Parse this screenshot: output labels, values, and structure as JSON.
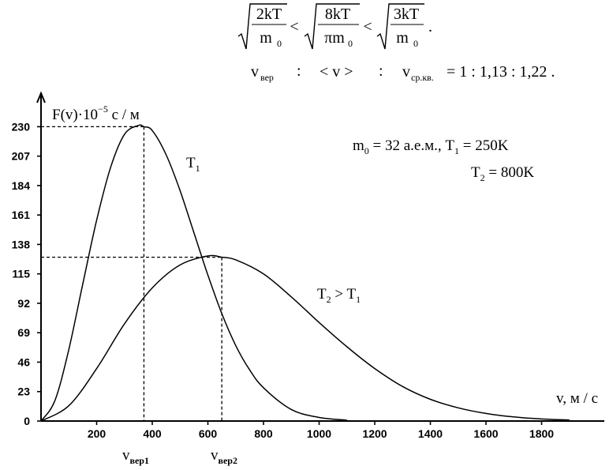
{
  "formula": {
    "line1": {
      "a_num": "2kT",
      "a_den": "m",
      "a_den_sub": "0",
      "b_num": "8kT",
      "b_den": "πm",
      "b_den_sub": "0",
      "c_num": "3kT",
      "c_den": "m",
      "c_den_sub": "0",
      "lt": "<",
      "end": "."
    },
    "line2": {
      "v_ver": "v",
      "v_ver_sub": "вер",
      "colon": ":",
      "v_avg": "< v >",
      "v_sq": "v",
      "v_sq_sub": "ср.кв.",
      "ratio": "= 1 : 1,13 : 1,22 ."
    }
  },
  "annotations": {
    "ylabel_main": "F(v)·10",
    "ylabel_exp": "−5",
    "ylabel_unit": " с / м",
    "xlabel": "v, м / с",
    "params_line1": "m",
    "params_m_sub": "0",
    "params_m_val": " = 32 а.е.м.,  T",
    "params_t1_sub": "1",
    "params_t1_val": " = 250K",
    "params_line2": "T",
    "params_t2_sub": "2",
    "params_t2_val": " = 800K",
    "curve1_label": "T",
    "curve1_sub": "1",
    "curve2_label": "T",
    "curve2_sub": "2",
    "curve2_rest": " > T",
    "curve2_rest_sub": "1",
    "vver1": "v",
    "vver1_sub": "вер1",
    "vver2": "v",
    "vver2_sub": "вер2"
  },
  "chart_data": {
    "type": "line",
    "xlabel": "v, м / с",
    "ylabel": "F(v)·10−5 с / м",
    "xlim": [
      0,
      2000
    ],
    "ylim": [
      0,
      250
    ],
    "xticks": [
      200,
      400,
      600,
      800,
      1000,
      1200,
      1400,
      1600,
      1800
    ],
    "yticks": [
      0,
      23,
      46,
      69,
      92,
      115,
      138,
      161,
      184,
      207,
      230
    ],
    "grid": false,
    "legend": "none",
    "series": [
      {
        "name": "T1",
        "peak_x": 370,
        "peak_y": 230,
        "x": [
          0,
          50,
          100,
          150,
          200,
          250,
          300,
          350,
          370,
          400,
          450,
          500,
          550,
          600,
          650,
          700,
          750,
          800,
          900,
          1000,
          1100
        ],
        "y": [
          0,
          16,
          56,
          107,
          157,
          198,
          224,
          231,
          230,
          227,
          208,
          180,
          147,
          114,
          84,
          59,
          40,
          26,
          9,
          2.8,
          0.7
        ]
      },
      {
        "name": "T2",
        "peak_x": 650,
        "peak_y": 128,
        "x": [
          0,
          100,
          200,
          300,
          400,
          500,
          600,
          650,
          700,
          800,
          900,
          1000,
          1100,
          1200,
          1300,
          1400,
          1500,
          1600,
          1700,
          1800,
          1900
        ],
        "y": [
          0,
          12,
          41,
          76,
          104,
          122,
          129,
          128,
          126,
          115,
          97,
          77,
          58,
          41,
          27,
          17,
          10.3,
          5.9,
          3.2,
          1.6,
          0.8
        ]
      }
    ],
    "guides": [
      {
        "series": "T1",
        "x": 370,
        "y": 230
      },
      {
        "series": "T2",
        "x": 650,
        "y": 128
      }
    ]
  }
}
